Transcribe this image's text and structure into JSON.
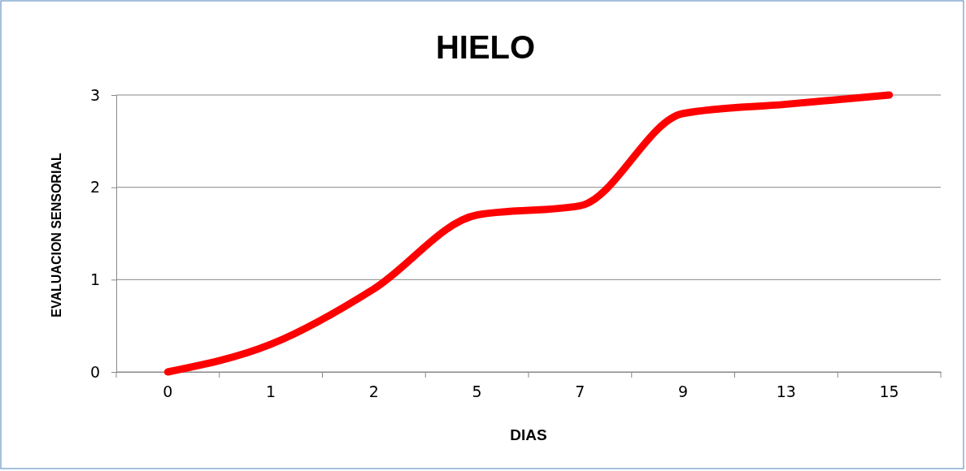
{
  "chart_data": {
    "type": "line",
    "title": "HIELO",
    "xlabel": "DIAS",
    "ylabel": "EVALUACION SENSORIAL",
    "categories": [
      "0",
      "1",
      "2",
      "5",
      "7",
      "9",
      "13",
      "15"
    ],
    "series": [
      {
        "color": "#ff0000",
        "values": [
          0,
          0.3,
          0.9,
          1.7,
          1.8,
          2.8,
          2.9,
          3.0
        ]
      }
    ],
    "ylim": [
      0,
      3
    ],
    "yticks": [
      0,
      1,
      2,
      3
    ],
    "grid": "y",
    "marker": "none",
    "line_style": "solid"
  }
}
